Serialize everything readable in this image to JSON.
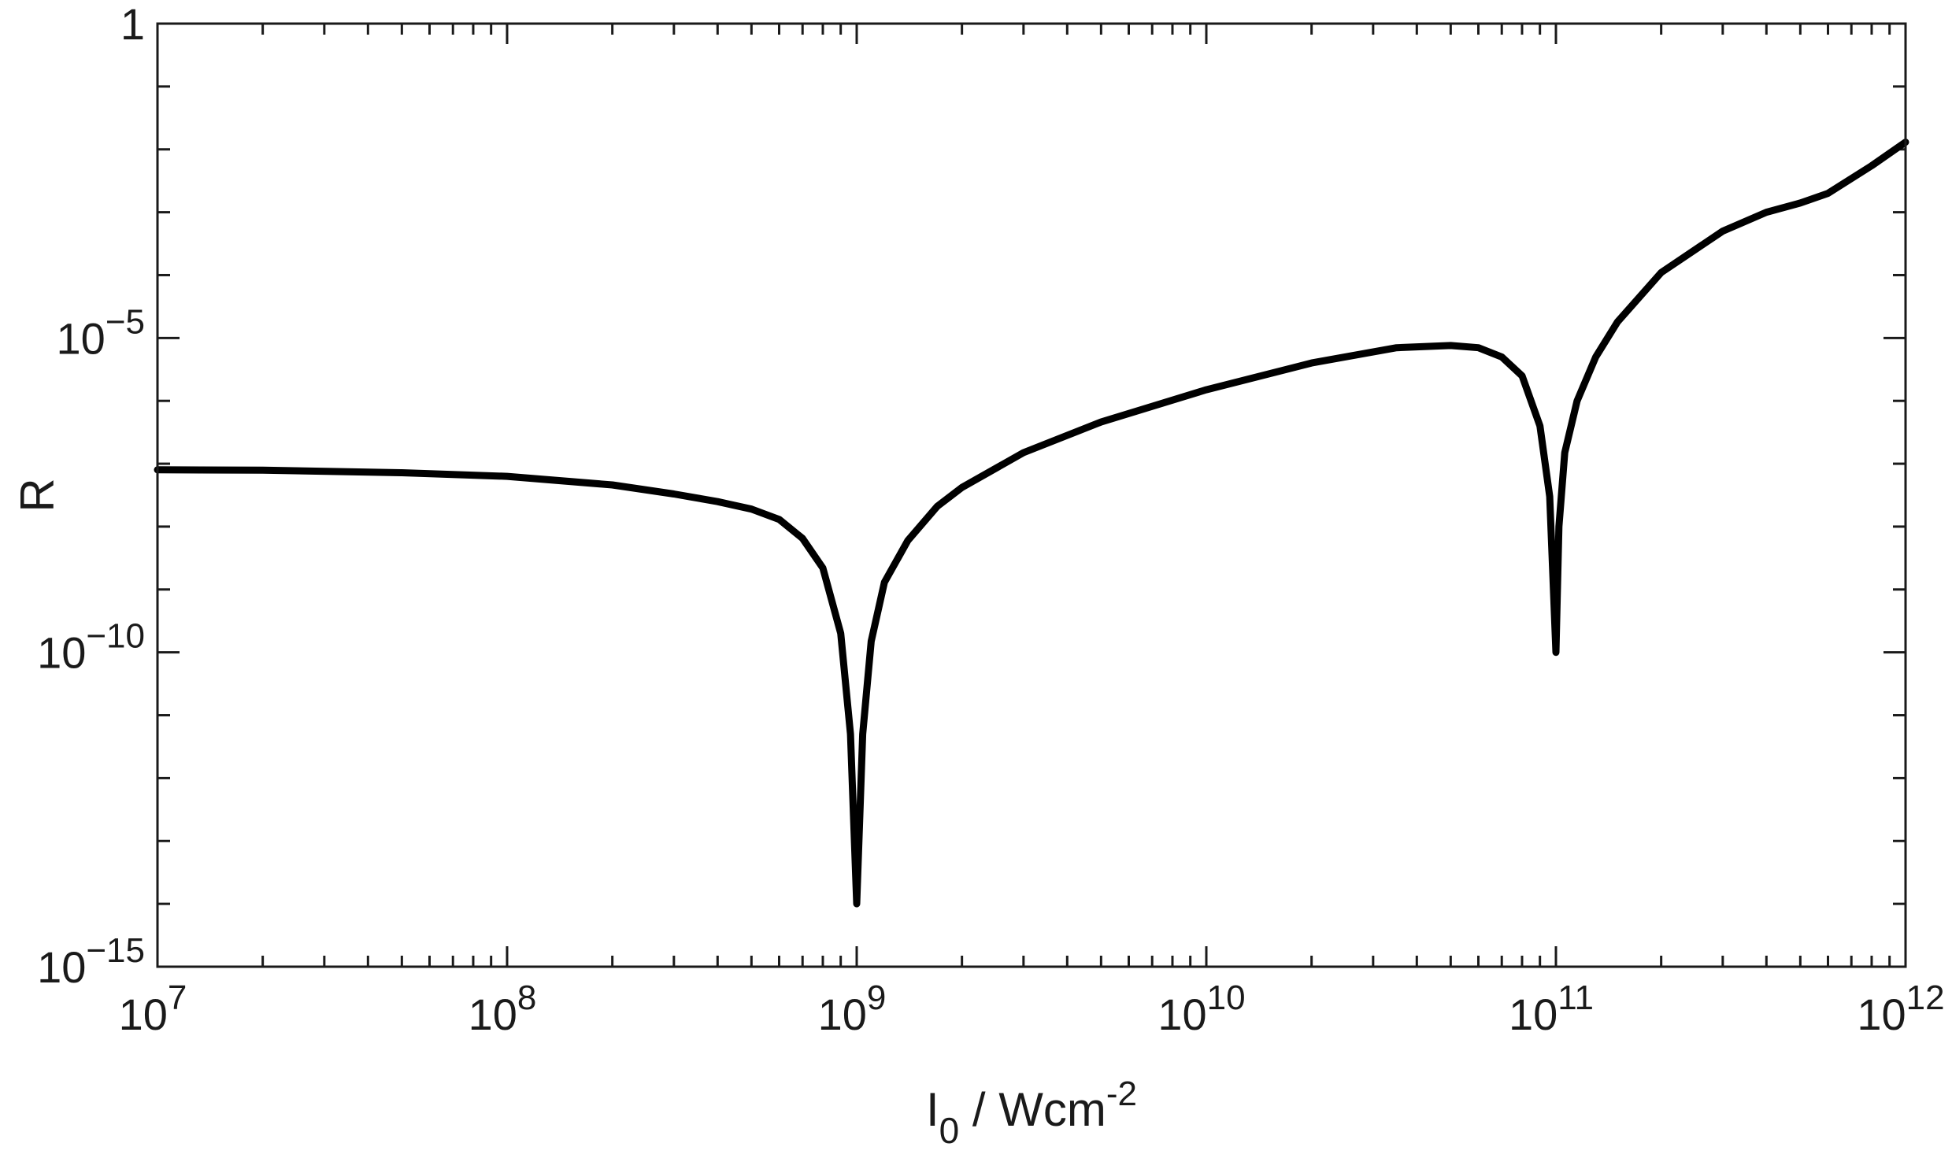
{
  "chart_data": {
    "type": "line",
    "x_scale": "log",
    "y_scale": "log",
    "xlim": [
      10000000.0,
      1000000000000.0
    ],
    "ylim": [
      1e-15,
      1
    ],
    "xlabel": {
      "base": "I",
      "subscript": "0",
      "rest": " / Wcm",
      "superscript": "-2"
    },
    "ylabel": "R",
    "grid": false,
    "x_ticks": [
      {
        "value": 10000000.0,
        "base": "10",
        "exp": "7"
      },
      {
        "value": 100000000.0,
        "base": "10",
        "exp": "8"
      },
      {
        "value": 1000000000.0,
        "base": "10",
        "exp": "9"
      },
      {
        "value": 10000000000.0,
        "base": "10",
        "exp": "10"
      },
      {
        "value": 100000000000.0,
        "base": "10",
        "exp": "11"
      },
      {
        "value": 1000000000000.0,
        "base": "10",
        "exp": "12"
      }
    ],
    "y_ticks": [
      {
        "value": 1e-15,
        "base": "10",
        "exp": "−15"
      },
      {
        "value": 1e-10,
        "base": "10",
        "exp": "−10"
      },
      {
        "value": 1e-05,
        "base": "10",
        "exp": "−5"
      },
      {
        "value": 1,
        "base": "1",
        "exp": ""
      }
    ],
    "series": [
      {
        "color": "#000000",
        "points": [
          [
            10000000.0,
            8e-08
          ],
          [
            20000000.0,
            7.9e-08
          ],
          [
            50000000.0,
            7.2e-08
          ],
          [
            100000000.0,
            6.3e-08
          ],
          [
            200000000.0,
            4.6e-08
          ],
          [
            300000000.0,
            3.3e-08
          ],
          [
            400000000.0,
            2.5e-08
          ],
          [
            500000000.0,
            1.9e-08
          ],
          [
            600000000.0,
            1.3e-08
          ],
          [
            700000000.0,
            6.5e-09
          ],
          [
            800000000.0,
            2.2e-09
          ],
          [
            900000000.0,
            2e-10
          ],
          [
            960000000.0,
            5e-12
          ],
          [
            1000000000.0,
            1e-14
          ],
          [
            1040000000.0,
            5e-12
          ],
          [
            1100000000.0,
            1.5e-10
          ],
          [
            1200000000.0,
            1.3e-09
          ],
          [
            1400000000.0,
            6e-09
          ],
          [
            1700000000.0,
            2.1e-08
          ],
          [
            2000000000.0,
            4.2e-08
          ],
          [
            3000000000.0,
            1.5e-07
          ],
          [
            5000000000.0,
            4.6e-07
          ],
          [
            10000000000.0,
            1.5e-06
          ],
          [
            20000000000.0,
            4e-06
          ],
          [
            35000000000.0,
            7e-06
          ],
          [
            50000000000.0,
            7.6e-06
          ],
          [
            60000000000.0,
            7e-06
          ],
          [
            70000000000.0,
            5e-06
          ],
          [
            80000000000.0,
            2.5e-06
          ],
          [
            90000000000.0,
            4e-07
          ],
          [
            96000000000.0,
            3e-08
          ],
          [
            100000000000.0,
            1e-10
          ],
          [
            102000000000.0,
            1e-08
          ],
          [
            106000000000.0,
            1.5e-07
          ],
          [
            115000000000.0,
            1e-06
          ],
          [
            130000000000.0,
            5e-06
          ],
          [
            150000000000.0,
            1.8e-05
          ],
          [
            200000000000.0,
            0.00011
          ],
          [
            300000000000.0,
            0.0005
          ],
          [
            400000000000.0,
            0.001
          ],
          [
            500000000000.0,
            0.0014
          ],
          [
            600000000000.0,
            0.002
          ],
          [
            800000000000.0,
            0.0055
          ],
          [
            1000000000000.0,
            0.013
          ]
        ]
      }
    ]
  }
}
